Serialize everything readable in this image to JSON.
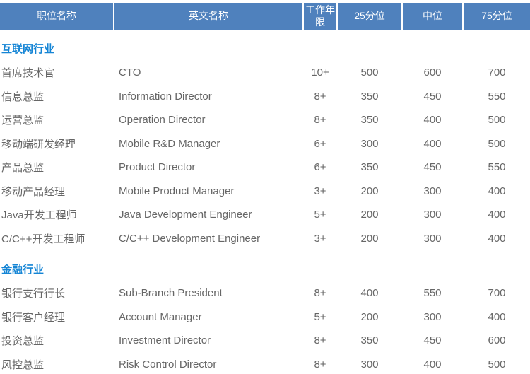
{
  "colors": {
    "header_bg": "#4f81bd",
    "header_text": "#ffffff",
    "section_title": "#1585d5",
    "body_text": "#666666",
    "divider": "#bdbdbd"
  },
  "table": {
    "headers": [
      "职位名称",
      "英文名称",
      "工作年限",
      "25分位",
      "中位",
      "75分位"
    ],
    "sections": [
      {
        "title": "互联网行业",
        "rows": [
          [
            "首席技术官",
            "CTO",
            "10+",
            "500",
            "600",
            "700"
          ],
          [
            "信息总监",
            "Information Director",
            "8+",
            "350",
            "450",
            "550"
          ],
          [
            "运营总监",
            "Operation Director",
            "8+",
            "350",
            "400",
            "500"
          ],
          [
            "移动端研发经理",
            "Mobile R&D Manager",
            "6+",
            "300",
            "400",
            "500"
          ],
          [
            "产品总监",
            "Product Director",
            "6+",
            "350",
            "450",
            "550"
          ],
          [
            "移动产品经理",
            "Mobile Product Manager",
            "3+",
            "200",
            "300",
            "400"
          ],
          [
            "Java开发工程师",
            "Java Development Engineer",
            "5+",
            "200",
            "300",
            "400"
          ],
          [
            "C/C++开发工程师",
            "C/C++ Development Engineer",
            "3+",
            "200",
            "300",
            "400"
          ]
        ]
      },
      {
        "title": "金融行业",
        "rows": [
          [
            "银行支行行长",
            "Sub-Branch President",
            "8+",
            "400",
            "550",
            "700"
          ],
          [
            "银行客户经理",
            "Account Manager",
            "5+",
            "200",
            "300",
            "400"
          ],
          [
            "投资总监",
            "Investment Director",
            "8+",
            "350",
            "450",
            "600"
          ],
          [
            "风控总监",
            "Risk Control Director",
            "8+",
            "300",
            "400",
            "500"
          ]
        ]
      }
    ]
  }
}
